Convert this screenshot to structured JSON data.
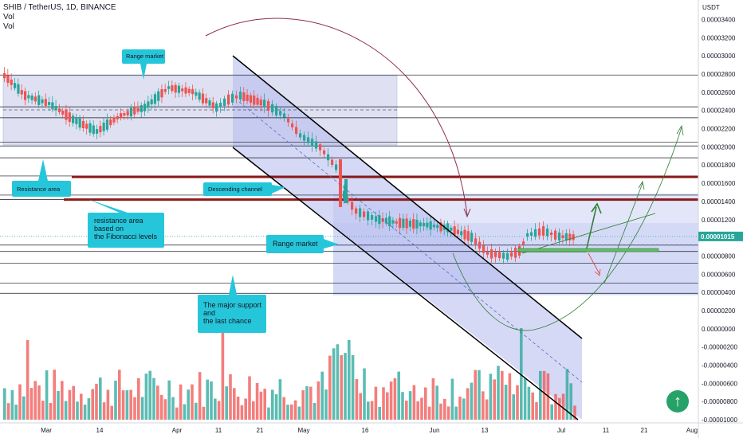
{
  "header": {
    "symbol_line": "SHIB / TetherUS, 1D, BINANCE",
    "vol1": "Vol",
    "vol2": "Vol"
  },
  "chart_data": {
    "type": "candlestick",
    "price_axis": {
      "currency": "USDT",
      "ticks": [
        "0.00003400",
        "0.00003200",
        "0.00003000",
        "0.00002800",
        "0.00002600",
        "0.00002400",
        "0.00002200",
        "0.00002000",
        "0.00001800",
        "0.00001600",
        "0.00001400",
        "0.00001200",
        "0.00001000",
        "0.00000800",
        "0.00000600",
        "0.00000400",
        "0.00000200",
        "0.00000000",
        "-0.00000200",
        "-0.00000400",
        "-0.00000600",
        "-0.00000800",
        "-0.00001000"
      ],
      "tick_values": [
        3.4e-05,
        3.2e-05,
        3e-05,
        2.8e-05,
        2.6e-05,
        2.4e-05,
        2.2e-05,
        2e-05,
        1.8e-05,
        1.6e-05,
        1.4e-05,
        1.2e-05,
        1e-05,
        8e-06,
        6e-06,
        4e-06,
        2e-06,
        0,
        -2e-06,
        -4e-06,
        -6e-06,
        -8e-06,
        -1e-05
      ],
      "last_price": "0.00001015",
      "last_price_value": 1.015e-05
    },
    "time_axis": {
      "labels": [
        "Mar",
        "14",
        "Apr",
        "11",
        "21",
        "May",
        "16",
        "Jun",
        "13",
        "Jul",
        "11",
        "21",
        "Aug"
      ],
      "label_dates": [
        "2021-03-01",
        "2021-03-14",
        "2021-04-01",
        "2021-04-11",
        "2021-04-21",
        "2021-05-01",
        "2021-05-16",
        "2021-06-01",
        "2021-06-13",
        "2021-07-01",
        "2021-07-11",
        "2021-07-21",
        "2021-08-01"
      ]
    },
    "horizontal_levels": [
      2.79e-05,
      2.44e-05,
      2.32e-05,
      2.05e-05,
      2.01e-05,
      1.88e-05,
      1.68e-05,
      1.47e-05,
      1.42e-05,
      9.2e-06,
      8.5e-06,
      7.2e-06,
      5e-06,
      3.9e-06
    ],
    "resistance_levels": [
      1.67e-05,
      1.42e-05
    ],
    "annotations": [
      {
        "id": "range-market-top",
        "text": "Range market"
      },
      {
        "id": "resistance-area",
        "text": "Resistance area"
      },
      {
        "id": "descending-channel",
        "text": "Descending channel"
      },
      {
        "id": "fib-resistance",
        "lines": [
          "resistance area",
          "based on",
          "the Fibonacci levels"
        ]
      },
      {
        "id": "range-market-mid",
        "text": "Range market"
      },
      {
        "id": "major-support",
        "lines": [
          "The major support",
          "and",
          "the last chance"
        ]
      }
    ],
    "colors": {
      "up": "#26a69a",
      "down": "#ef5350",
      "annotation_bg": "#26c6da",
      "channel_fill": "#b3b9ef",
      "range_fill": "#c5cae9",
      "resistance_line": "#8b1a1a",
      "arrow_green": "#2e7d32",
      "arrow_red": "#e53935",
      "last_price_bg": "#26a69a"
    }
  }
}
